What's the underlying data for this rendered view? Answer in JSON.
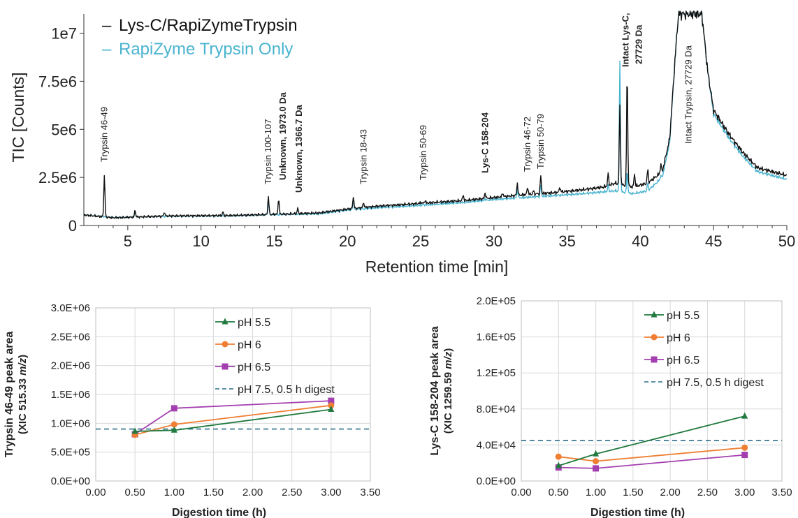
{
  "colors": {
    "black_trace": "#111111",
    "cyan_trace": "#4ab4cf",
    "ph55": "#217a3f",
    "ph6": "#ee7f33",
    "ph65": "#a43fb0",
    "ph75_ref": "#2b6f8c",
    "grid": "#d9d9d9",
    "axis": "#808080"
  },
  "chart_data": [
    {
      "type": "line",
      "xlabel": "Retention time [min]",
      "ylabel": "TIC [Counts]",
      "xlim": [
        2,
        50
      ],
      "ylim": [
        0,
        11000000
      ],
      "x_ticks": [
        "5",
        "10",
        "15",
        "20",
        "25",
        "30",
        "35",
        "40",
        "45",
        "50"
      ],
      "y_ticks": [
        "0",
        "2.5e6",
        "5e6",
        "7.5e6",
        "1e7"
      ],
      "legend": {
        "placement": "top-left",
        "entries": [
          {
            "marker": "–",
            "label": "Lys-C/RapiZymeTrypsin"
          },
          {
            "marker": "–",
            "label": "RapiZyme Trypsin Only"
          }
        ]
      },
      "series": [
        {
          "name": "Lys-C/RapiZymeTrypsin",
          "color": "black",
          "baseline": [
            [
              2,
              550000
            ],
            [
              4,
              400000
            ],
            [
              8,
              500000
            ],
            [
              12,
              520000
            ],
            [
              16,
              600000
            ],
            [
              18,
              650000
            ],
            [
              20,
              850000
            ],
            [
              22,
              1000000
            ],
            [
              24,
              1100000
            ],
            [
              26,
              1200000
            ],
            [
              28,
              1300000
            ],
            [
              30,
              1450000
            ],
            [
              32,
              1600000
            ],
            [
              34,
              1700000
            ],
            [
              36,
              1850000
            ],
            [
              37.5,
              2000000
            ],
            [
              38.3,
              2200000
            ],
            [
              39.5,
              2000000
            ],
            [
              40.5,
              2200000
            ],
            [
              41.5,
              2800000
            ],
            [
              42,
              4500000
            ],
            [
              42.4,
              9000000
            ],
            [
              42.6,
              11000000
            ],
            [
              44.2,
              11000000
            ],
            [
              44.6,
              8000000
            ],
            [
              45,
              6000000
            ],
            [
              46,
              4800000
            ],
            [
              47,
              3800000
            ],
            [
              48,
              3000000
            ],
            [
              50,
              2600000
            ]
          ],
          "peaks": [
            [
              3.4,
              2600000
            ],
            [
              5.5,
              800000
            ],
            [
              7.5,
              700000
            ],
            [
              11.5,
              700000
            ],
            [
              14.6,
              1500000
            ],
            [
              15.3,
              1400000
            ],
            [
              16.6,
              900000
            ],
            [
              20.4,
              1500000
            ],
            [
              21.1,
              1200000
            ],
            [
              25.0,
              1200000
            ],
            [
              25.3,
              1300000
            ],
            [
              27.9,
              1600000
            ],
            [
              29.4,
              1700000
            ],
            [
              30.6,
              1700000
            ],
            [
              31.6,
              2200000
            ],
            [
              32.3,
              2000000
            ],
            [
              32.7,
              1800000
            ],
            [
              33.2,
              2600000
            ],
            [
              34.5,
              2000000
            ],
            [
              37.8,
              2700000
            ],
            [
              38.6,
              6200000
            ],
            [
              39.1,
              7900000
            ],
            [
              39.6,
              2700000
            ],
            [
              40.5,
              2900000
            ],
            [
              41.4,
              3200000
            ]
          ]
        },
        {
          "name": "RapiZyme Trypsin Only",
          "color": "cyan",
          "baseline": [
            [
              2,
              550000
            ],
            [
              4,
              420000
            ],
            [
              8,
              480000
            ],
            [
              12,
              500000
            ],
            [
              16,
              580000
            ],
            [
              18,
              600000
            ],
            [
              20,
              800000
            ],
            [
              22,
              920000
            ],
            [
              24,
              1000000
            ],
            [
              26,
              1100000
            ],
            [
              28,
              1200000
            ],
            [
              30,
              1350000
            ],
            [
              32,
              1450000
            ],
            [
              34,
              1550000
            ],
            [
              36,
              1650000
            ],
            [
              37.5,
              1750000
            ],
            [
              38.3,
              1800000
            ],
            [
              39.5,
              1650000
            ],
            [
              40.5,
              1800000
            ],
            [
              41.5,
              2500000
            ],
            [
              42,
              4300000
            ],
            [
              42.4,
              9000000
            ],
            [
              42.6,
              11000000
            ],
            [
              44.2,
              11000000
            ],
            [
              44.6,
              8000000
            ],
            [
              45,
              5800000
            ],
            [
              46,
              4600000
            ],
            [
              47,
              3600000
            ],
            [
              48,
              2800000
            ],
            [
              50,
              2400000
            ]
          ],
          "peaks": [
            [
              5.5,
              750000
            ],
            [
              14.6,
              1300000
            ],
            [
              20.4,
              1300000
            ],
            [
              25.2,
              1100000
            ],
            [
              29.4,
              1400000
            ],
            [
              31.6,
              1900000
            ],
            [
              33.2,
              2100000
            ],
            [
              37.8,
              2100000
            ],
            [
              38.6,
              8500000
            ],
            [
              39.1,
              2800000
            ],
            [
              40.5,
              2200000
            ],
            [
              41.4,
              2600000
            ]
          ]
        }
      ],
      "annotations": [
        {
          "text": "Trypsin 46-49",
          "x": 3.4,
          "bold": false
        },
        {
          "text": "Trypsin 100-107",
          "x": 14.6,
          "bold": false
        },
        {
          "text": "Unknown, 1973.0 Da",
          "x": 15.6,
          "bold": true
        },
        {
          "text": "Unknown, 1366.7 Da",
          "x": 16.7,
          "bold": true
        },
        {
          "text": "Trypsin 18-43",
          "x": 21.1,
          "bold": false
        },
        {
          "text": "Trypsin 50-69",
          "x": 25.2,
          "bold": false
        },
        {
          "text": "Lys-C 158-204",
          "x": 29.4,
          "bold": true
        },
        {
          "text": "Trypsin 46-72",
          "x": 32.3,
          "bold": false
        },
        {
          "text": "Trypsin 50-79",
          "x": 33.2,
          "bold": false
        },
        {
          "text": "Intact Lys-C,",
          "x": 39.0,
          "bold": true
        },
        {
          "text": "27729 Da",
          "x": 39.9,
          "bold": true
        },
        {
          "text": "Intact Trypsin, 27729 Da",
          "x": 43.3,
          "bold": false
        }
      ]
    },
    {
      "type": "line",
      "xlabel": "Digestion time (h)",
      "ylabel_line1": "Trypsin 46-49 peak area",
      "ylabel_line2_prefix": "(XIC 515.33 ",
      "ylabel_mz": "m/z",
      "ylabel_line2_suffix": ")",
      "xlim": [
        0,
        3.5
      ],
      "ylim": [
        0,
        3000000
      ],
      "x_ticks": [
        "0.00",
        "0.50",
        "1.00",
        "1.50",
        "2.00",
        "2.50",
        "3.00",
        "3.50"
      ],
      "y_ticks": [
        "0.0E+00",
        "5.0E+05",
        "1.0E+06",
        "1.5E+06",
        "2.0E+06",
        "2.5E+06",
        "3.0E+06"
      ],
      "grid": true,
      "legend": "top-right",
      "x": [
        0.5,
        1.0,
        3.0
      ],
      "series": [
        {
          "name": "pH 5.5",
          "marker": "triangle",
          "values": [
            860000,
            880000,
            1240000
          ]
        },
        {
          "name": "pH 6",
          "marker": "circle",
          "values": [
            800000,
            980000,
            1310000
          ]
        },
        {
          "name": "pH 6.5",
          "marker": "square",
          "values": [
            810000,
            1260000,
            1390000
          ]
        },
        {
          "name": "pH 7.5, 0.5 h digest",
          "marker": "dashed",
          "value": 900000
        }
      ]
    },
    {
      "type": "line",
      "xlabel": "Digestion time (h)",
      "ylabel_line1": "Lys-C 158-204 peak area",
      "ylabel_line2_prefix": "(XIC 1259.59 ",
      "ylabel_mz": "m/z",
      "ylabel_line2_suffix": ")",
      "xlim": [
        0,
        3.5
      ],
      "ylim": [
        0,
        200000
      ],
      "x_ticks": [
        "0.00",
        "0.50",
        "1.00",
        "1.50",
        "2.00",
        "2.50",
        "3.00",
        "3.50"
      ],
      "y_ticks": [
        "0.0E+00",
        "4.0E+04",
        "8.0E+04",
        "1.2E+05",
        "1.6E+05",
        "2.0E+05"
      ],
      "grid": true,
      "legend": "top-right",
      "x": [
        0.5,
        1.0,
        3.0
      ],
      "series": [
        {
          "name": "pH 5.5",
          "marker": "triangle",
          "values": [
            17000,
            30000,
            72000
          ]
        },
        {
          "name": "pH 6",
          "marker": "circle",
          "values": [
            27000,
            22000,
            37000
          ]
        },
        {
          "name": "pH 6.5",
          "marker": "square",
          "values": [
            15000,
            14000,
            29000
          ]
        },
        {
          "name": "pH 7.5, 0.5 h digest",
          "marker": "dashed",
          "value": 45000
        }
      ]
    }
  ]
}
